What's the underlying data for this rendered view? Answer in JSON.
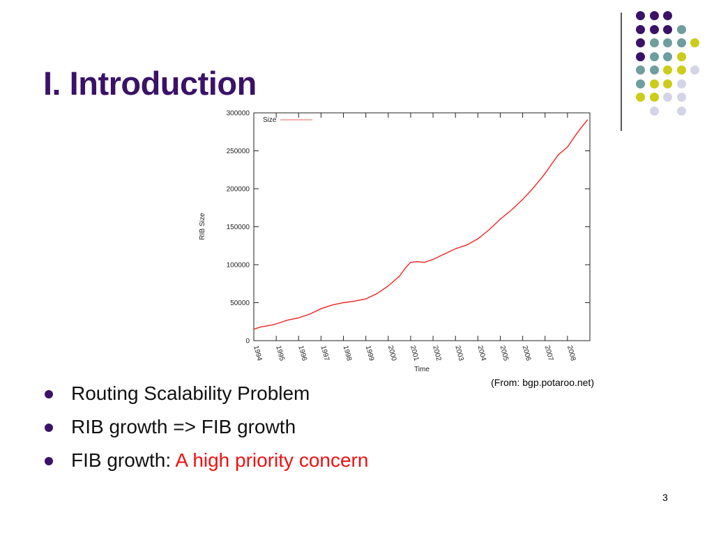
{
  "slide": {
    "title": "I. Introduction",
    "page_number": "3",
    "caption": "(From: bgp.potaroo.net)"
  },
  "bullets": [
    {
      "text": "Routing Scalability Problem",
      "highlight": ""
    },
    {
      "text": "RIB growth => FIB growth",
      "highlight": ""
    },
    {
      "text": "FIB growth: ",
      "highlight": "A high priority concern"
    }
  ],
  "colors": {
    "title": "#3a1268",
    "bullet_dot": "#3a1268",
    "highlight": "#ee1111",
    "line": "#ee2222",
    "decor_purple": "#3a1268",
    "decor_teal": "#6e9e9e",
    "decor_yellow": "#cccc1a",
    "decor_lavender": "#d4d4e8"
  },
  "decor": {
    "dot_grid": [
      [
        "purple",
        "purple",
        "purple",
        null,
        null
      ],
      [
        "purple",
        "purple",
        "purple",
        "teal",
        null
      ],
      [
        "purple",
        "teal",
        "teal",
        "teal",
        "yellow"
      ],
      [
        "purple",
        "teal",
        "teal",
        "yellow",
        null
      ],
      [
        "teal",
        "teal",
        "yellow",
        "yellow",
        "lavender"
      ],
      [
        "teal",
        "yellow",
        "yellow",
        "lavender",
        null
      ],
      [
        "yellow",
        "yellow",
        "lavender",
        "lavender",
        null
      ],
      [
        null,
        "lavender",
        null,
        "lavender",
        null
      ]
    ]
  },
  "chart_data": {
    "type": "line",
    "title": "",
    "xlabel": "Time",
    "ylabel": "RIB Size",
    "legend": "top-left",
    "grid": false,
    "ylim": [
      0,
      300000
    ],
    "xlim": [
      1994,
      2009
    ],
    "y_ticks": [
      "0",
      "50000",
      "100000",
      "150000",
      "200000",
      "250000",
      "300000"
    ],
    "x_ticks": [
      "1994",
      "1995",
      "1996",
      "1997",
      "1998",
      "1999",
      "2000",
      "2001",
      "2002",
      "2003",
      "2004",
      "2005",
      "2006",
      "2007",
      "2008"
    ],
    "series": [
      {
        "name": "Size",
        "x": [
          1994.0,
          1994.3,
          1994.7,
          1995.0,
          1995.5,
          1996.0,
          1996.5,
          1997.0,
          1997.5,
          1998.0,
          1998.5,
          1999.0,
          1999.5,
          2000.0,
          2000.5,
          2000.8,
          2001.0,
          2001.3,
          2001.6,
          2002.0,
          2002.5,
          2003.0,
          2003.5,
          2004.0,
          2004.5,
          2005.0,
          2005.5,
          2006.0,
          2006.5,
          2007.0,
          2007.3,
          2007.6,
          2008.0,
          2008.3,
          2008.6,
          2008.9
        ],
        "values": [
          15000,
          18000,
          20000,
          22000,
          27000,
          30000,
          35000,
          42000,
          47000,
          50000,
          52000,
          55000,
          62000,
          72000,
          85000,
          97000,
          103000,
          104000,
          103000,
          107000,
          114000,
          121000,
          126000,
          134000,
          146000,
          160000,
          172000,
          186000,
          202000,
          220000,
          233000,
          245000,
          255000,
          268000,
          280000,
          291000
        ]
      }
    ]
  }
}
